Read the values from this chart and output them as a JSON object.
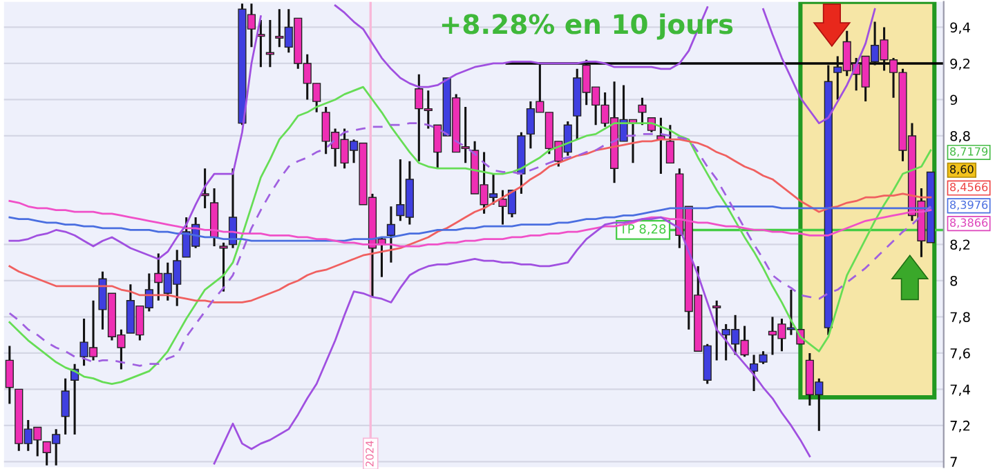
{
  "chart_data": {
    "type": "candlestick",
    "title": "+8.28% en 10 jours",
    "categories": [
      null,
      null,
      null,
      null,
      null,
      null,
      null,
      null,
      null,
      null,
      null,
      null,
      null,
      null,
      null,
      null,
      null,
      null,
      null,
      null,
      null,
      null,
      null,
      null,
      null,
      null,
      null,
      null,
      null,
      null,
      null,
      null,
      null,
      null,
      null,
      null,
      null,
      null,
      null,
      null,
      null,
      null,
      null,
      null,
      null,
      null,
      null,
      null,
      null,
      null,
      null,
      null,
      null,
      null,
      null,
      null,
      null,
      null,
      null,
      null,
      null,
      null,
      null,
      null,
      null,
      null,
      null,
      null,
      null,
      null,
      null,
      null,
      null,
      null,
      null,
      null,
      null,
      null,
      null,
      null,
      null,
      null,
      null,
      null,
      null,
      null,
      null,
      null,
      null,
      null,
      null,
      null,
      null,
      null,
      null,
      null,
      null,
      null,
      null,
      null
    ],
    "ohlc": [
      [
        7.56,
        7.64,
        7.32,
        7.41
      ],
      [
        7.4,
        7.4,
        7.06,
        7.1
      ],
      [
        7.1,
        7.23,
        7.06,
        7.18
      ],
      [
        7.19,
        7.19,
        7.03,
        7.12
      ],
      [
        7.11,
        7.11,
        6.98,
        7.05
      ],
      [
        7.1,
        7.18,
        6.98,
        7.15
      ],
      [
        7.25,
        7.46,
        7.15,
        7.39
      ],
      [
        7.45,
        7.54,
        7.15,
        7.51
      ],
      [
        7.58,
        7.79,
        7.53,
        7.66
      ],
      [
        7.63,
        7.89,
        7.56,
        7.58
      ],
      [
        7.84,
        8.05,
        7.73,
        8.01
      ],
      [
        7.93,
        7.93,
        7.67,
        7.69
      ],
      [
        7.7,
        7.73,
        7.51,
        7.63
      ],
      [
        7.71,
        7.98,
        7.71,
        7.89
      ],
      [
        7.86,
        7.86,
        7.67,
        7.7
      ],
      [
        7.85,
        8.04,
        7.83,
        7.95
      ],
      [
        8.04,
        8.15,
        7.89,
        7.99
      ],
      [
        7.93,
        8.1,
        7.89,
        8.04
      ],
      [
        7.98,
        8.17,
        7.86,
        8.11
      ],
      [
        8.13,
        8.35,
        8.13,
        8.27
      ],
      [
        8.19,
        8.35,
        8.18,
        8.31
      ],
      [
        8.48,
        8.62,
        8.4,
        8.47
      ],
      [
        8.43,
        8.51,
        8.19,
        8.24
      ],
      [
        8.19,
        8.21,
        7.94,
        8.18
      ],
      [
        8.2,
        8.62,
        8.18,
        8.35
      ],
      [
        8.87,
        9.53,
        8.86,
        9.5
      ],
      [
        9.47,
        9.53,
        9.29,
        9.39
      ],
      [
        9.36,
        9.44,
        9.18,
        9.35
      ],
      [
        9.26,
        9.44,
        9.18,
        9.25
      ],
      [
        9.35,
        9.5,
        9.29,
        9.34
      ],
      [
        9.29,
        9.5,
        9.26,
        9.4
      ],
      [
        9.45,
        9.45,
        9.17,
        9.2
      ],
      [
        9.2,
        9.25,
        9.0,
        9.09
      ],
      [
        9.09,
        9.09,
        8.93,
        8.99
      ],
      [
        8.93,
        8.96,
        8.7,
        8.77
      ],
      [
        8.82,
        8.84,
        8.63,
        8.73
      ],
      [
        8.78,
        8.84,
        8.62,
        8.65
      ],
      [
        8.72,
        8.78,
        8.65,
        8.77
      ],
      [
        8.76,
        8.76,
        8.42,
        8.42
      ],
      [
        8.46,
        8.48,
        7.91,
        8.18
      ],
      [
        8.23,
        8.24,
        8.02,
        8.2
      ],
      [
        8.25,
        8.41,
        8.1,
        8.31
      ],
      [
        8.36,
        8.67,
        8.33,
        8.42
      ],
      [
        8.35,
        8.66,
        8.31,
        8.56
      ],
      [
        9.06,
        9.14,
        8.66,
        8.95
      ],
      [
        8.95,
        9.05,
        8.84,
        8.94
      ],
      [
        8.86,
        8.86,
        8.62,
        8.71
      ],
      [
        8.8,
        9.12,
        8.8,
        9.12
      ],
      [
        9.01,
        9.03,
        8.71,
        8.71
      ],
      [
        8.74,
        8.96,
        8.65,
        8.73
      ],
      [
        8.72,
        8.77,
        8.48,
        8.48
      ],
      [
        8.53,
        8.71,
        8.37,
        8.42
      ],
      [
        8.46,
        8.59,
        8.42,
        8.48
      ],
      [
        8.45,
        8.5,
        8.31,
        8.41
      ],
      [
        8.37,
        8.5,
        8.35,
        8.5
      ],
      [
        8.59,
        8.82,
        8.48,
        8.8
      ],
      [
        8.81,
        8.99,
        8.73,
        8.95
      ],
      [
        8.99,
        9.2,
        8.93,
        8.93
      ],
      [
        8.93,
        8.93,
        8.7,
        8.73
      ],
      [
        8.77,
        8.77,
        8.63,
        8.66
      ],
      [
        8.71,
        8.88,
        8.69,
        8.86
      ],
      [
        8.91,
        9.17,
        8.78,
        9.12
      ],
      [
        9.19,
        9.22,
        8.97,
        9.04
      ],
      [
        9.07,
        9.07,
        8.86,
        8.97
      ],
      [
        8.97,
        9.04,
        8.85,
        8.87
      ],
      [
        8.9,
        9.1,
        8.54,
        8.62
      ],
      [
        8.77,
        9.08,
        8.77,
        8.89
      ],
      [
        8.89,
        8.89,
        8.65,
        8.87
      ],
      [
        8.97,
        9.01,
        8.86,
        8.93
      ],
      [
        8.9,
        8.9,
        8.82,
        8.83
      ],
      [
        8.8,
        8.9,
        8.59,
        8.78
      ],
      [
        8.77,
        8.86,
        8.65,
        8.65
      ],
      [
        8.59,
        8.62,
        8.18,
        8.25
      ],
      [
        8.41,
        8.41,
        7.73,
        7.83
      ],
      [
        7.92,
        8.08,
        7.61,
        7.61
      ],
      [
        7.45,
        7.65,
        7.43,
        7.64
      ],
      [
        7.86,
        7.89,
        7.56,
        7.85
      ],
      [
        7.7,
        7.76,
        7.56,
        7.73
      ],
      [
        7.65,
        7.81,
        7.59,
        7.73
      ],
      [
        7.67,
        7.75,
        7.58,
        7.59
      ],
      [
        7.5,
        7.59,
        7.39,
        7.54
      ],
      [
        7.55,
        7.61,
        7.54,
        7.59
      ],
      [
        7.72,
        7.8,
        7.59,
        7.7
      ],
      [
        7.76,
        7.79,
        7.61,
        7.68
      ],
      [
        7.73,
        7.95,
        7.7,
        7.74
      ],
      [
        7.73,
        7.73,
        7.65,
        7.65
      ],
      [
        7.56,
        7.6,
        7.31,
        7.37
      ],
      [
        7.37,
        7.46,
        7.17,
        7.44
      ],
      [
        7.74,
        9.19,
        7.7,
        9.1
      ],
      [
        9.15,
        9.24,
        9.0,
        9.18
      ],
      [
        9.32,
        9.38,
        9.13,
        9.16
      ],
      [
        9.2,
        9.23,
        9.05,
        9.14
      ],
      [
        9.24,
        9.24,
        8.99,
        9.07
      ],
      [
        9.21,
        9.43,
        9.19,
        9.3
      ],
      [
        9.33,
        9.4,
        9.16,
        9.22
      ],
      [
        9.22,
        9.23,
        9.01,
        9.15
      ],
      [
        9.15,
        9.17,
        8.66,
        8.72
      ],
      [
        8.8,
        8.87,
        8.33,
        8.36
      ],
      [
        8.44,
        8.51,
        8.13,
        8.22
      ],
      [
        8.21,
        8.6,
        8.21,
        8.6
      ]
    ],
    "colors": [
      "#ee2fb4",
      "#ee2fb4",
      "#3f3fe0",
      "#ee2fb4",
      "#ee2fb4",
      "#3f3fe0",
      "#3f3fe0",
      "#3f3fe0",
      "#3f3fe0",
      "#ee2fb4",
      "#3f3fe0",
      "#ee2fb4",
      "#ee2fb4",
      "#3f3fe0",
      "#ee2fb4",
      "#3f3fe0",
      "#ee2fb4",
      "#3f3fe0",
      "#3f3fe0",
      "#3f3fe0",
      "#3f3fe0",
      "#ee2fb4",
      "#ee2fb4",
      "#ee2fb4",
      "#3f3fe0",
      "#3f3fe0",
      "#ee2fb4",
      "#ee2fb4",
      "#ee2fb4",
      "#ee2fb4",
      "#3f3fe0",
      "#ee2fb4",
      "#ee2fb4",
      "#ee2fb4",
      "#ee2fb4",
      "#ee2fb4",
      "#ee2fb4",
      "#3f3fe0",
      "#ee2fb4",
      "#ee2fb4",
      "#ee2fb4",
      "#3f3fe0",
      "#3f3fe0",
      "#3f3fe0",
      "#ee2fb4",
      "#ee2fb4",
      "#ee2fb4",
      "#3f3fe0",
      "#ee2fb4",
      "#ee2fb4",
      "#ee2fb4",
      "#ee2fb4",
      "#3f3fe0",
      "#ee2fb4",
      "#3f3fe0",
      "#3f3fe0",
      "#3f3fe0",
      "#ee2fb4",
      "#ee2fb4",
      "#ee2fb4",
      "#3f3fe0",
      "#3f3fe0",
      "#ee2fb4",
      "#ee2fb4",
      "#ee2fb4",
      "#ee2fb4",
      "#3f3fe0",
      "#ee2fb4",
      "#ee2fb4",
      "#ee2fb4",
      "#ee2fb4",
      "#ee2fb4",
      "#ee2fb4",
      "#ee2fb4",
      "#ee2fb4",
      "#3f3fe0",
      "#ee2fb4",
      "#3f3fe0",
      "#3f3fe0",
      "#ee2fb4",
      "#3f3fe0",
      "#3f3fe0",
      "#ee2fb4",
      "#ee2fb4",
      "#3f3fe0",
      "#ee2fb4",
      "#ee2fb4",
      "#3f3fe0",
      "#3f3fe0",
      "#3f3fe0",
      "#ee2fb4",
      "#ee2fb4",
      "#ee2fb4",
      "#3f3fe0",
      "#ee2fb4",
      "#ee2fb4",
      "#ee2fb4",
      "#ee2fb4",
      "#ee2fb4",
      "#3f3fe0"
    ],
    "series": [
      {
        "type": "line",
        "color": "#66dd55",
        "values": [
          7.77,
          7.72,
          7.67,
          7.63,
          7.59,
          7.55,
          7.52,
          7.5,
          7.47,
          7.46,
          7.44,
          7.43,
          7.44,
          7.46,
          7.48,
          7.5,
          7.55,
          7.61,
          7.7,
          7.79,
          7.87,
          7.95,
          7.99,
          8.03,
          8.1,
          8.25,
          8.41,
          8.57,
          8.67,
          8.78,
          8.84,
          8.91,
          8.93,
          8.96,
          8.98,
          9.0,
          9.03,
          9.05,
          9.07,
          9.0,
          8.93,
          8.85,
          8.78,
          8.71,
          8.65,
          8.63,
          8.62,
          8.62,
          8.62,
          8.62,
          8.61,
          8.6,
          8.59,
          8.59,
          8.6,
          8.62,
          8.65,
          8.68,
          8.72,
          8.74,
          8.76,
          8.78,
          8.8,
          8.81,
          8.84,
          8.87,
          8.87,
          8.87,
          8.87,
          8.87,
          8.85,
          8.83,
          8.8,
          8.78,
          8.68,
          8.59,
          8.5,
          8.42,
          8.33,
          8.24,
          8.16,
          8.07,
          7.97,
          7.88,
          7.78,
          7.69,
          7.65,
          7.61,
          7.69,
          7.86,
          8.03,
          8.13,
          8.23,
          8.33,
          8.42,
          8.5,
          8.59,
          8.61,
          8.63,
          8.72
        ]
      },
      {
        "type": "line",
        "color": "#f06060",
        "values": [
          8.08,
          8.05,
          8.03,
          8.01,
          7.99,
          7.97,
          7.97,
          7.97,
          7.97,
          7.97,
          7.97,
          7.97,
          7.95,
          7.94,
          7.92,
          7.92,
          7.92,
          7.92,
          7.91,
          7.9,
          7.89,
          7.89,
          7.88,
          7.88,
          7.88,
          7.88,
          7.89,
          7.91,
          7.93,
          7.95,
          7.98,
          8.0,
          8.03,
          8.05,
          8.06,
          8.08,
          8.1,
          8.12,
          8.14,
          8.15,
          8.16,
          8.17,
          8.18,
          8.2,
          8.22,
          8.24,
          8.27,
          8.29,
          8.32,
          8.35,
          8.38,
          8.4,
          8.43,
          8.46,
          8.49,
          8.52,
          8.56,
          8.59,
          8.63,
          8.65,
          8.67,
          8.69,
          8.7,
          8.72,
          8.73,
          8.74,
          8.75,
          8.76,
          8.77,
          8.77,
          8.78,
          8.78,
          8.78,
          8.77,
          8.76,
          8.74,
          8.71,
          8.69,
          8.66,
          8.63,
          8.61,
          8.58,
          8.56,
          8.52,
          8.48,
          8.44,
          8.41,
          8.38,
          8.4,
          8.41,
          8.43,
          8.44,
          8.46,
          8.46,
          8.47,
          8.47,
          8.48,
          8.47,
          8.46,
          8.46
        ]
      },
      {
        "type": "line",
        "color": "#4a6ee0",
        "values": [
          8.35,
          8.34,
          8.34,
          8.33,
          8.32,
          8.32,
          8.31,
          8.31,
          8.3,
          8.3,
          8.29,
          8.29,
          8.29,
          8.28,
          8.28,
          8.28,
          8.27,
          8.27,
          8.26,
          8.26,
          8.25,
          8.24,
          8.24,
          8.23,
          8.23,
          8.23,
          8.22,
          8.22,
          8.22,
          8.22,
          8.22,
          8.22,
          8.22,
          8.22,
          8.22,
          8.22,
          8.22,
          8.23,
          8.23,
          8.23,
          8.24,
          8.24,
          8.25,
          8.26,
          8.26,
          8.27,
          8.28,
          8.28,
          8.28,
          8.29,
          8.29,
          8.3,
          8.3,
          8.3,
          8.3,
          8.31,
          8.31,
          8.31,
          8.31,
          8.32,
          8.32,
          8.33,
          8.34,
          8.34,
          8.35,
          8.35,
          8.36,
          8.36,
          8.37,
          8.38,
          8.39,
          8.4,
          8.4,
          8.4,
          8.4,
          8.4,
          8.41,
          8.41,
          8.41,
          8.41,
          8.41,
          8.41,
          8.41,
          8.4,
          8.4,
          8.4,
          8.4,
          8.4,
          8.4,
          8.4,
          8.4,
          8.4,
          8.4,
          8.4,
          8.4,
          8.4,
          8.4,
          8.4,
          8.4,
          8.4
        ]
      },
      {
        "type": "line",
        "color": "#f050c8",
        "values": [
          8.44,
          8.43,
          8.41,
          8.4,
          8.4,
          8.39,
          8.39,
          8.38,
          8.38,
          8.38,
          8.37,
          8.37,
          8.36,
          8.35,
          8.34,
          8.33,
          8.32,
          8.31,
          8.3,
          8.29,
          8.29,
          8.28,
          8.28,
          8.27,
          8.27,
          8.26,
          8.26,
          8.26,
          8.25,
          8.25,
          8.25,
          8.24,
          8.24,
          8.23,
          8.23,
          8.22,
          8.21,
          8.21,
          8.2,
          8.2,
          8.2,
          8.2,
          8.19,
          8.19,
          8.19,
          8.2,
          8.2,
          8.21,
          8.21,
          8.22,
          8.22,
          8.23,
          8.23,
          8.23,
          8.24,
          8.24,
          8.25,
          8.25,
          8.26,
          8.26,
          8.27,
          8.27,
          8.28,
          8.29,
          8.3,
          8.3,
          8.31,
          8.32,
          8.34,
          8.35,
          8.35,
          8.34,
          8.34,
          8.33,
          8.32,
          8.32,
          8.31,
          8.3,
          8.3,
          8.29,
          8.28,
          8.28,
          8.27,
          8.27,
          8.26,
          8.26,
          8.25,
          8.25,
          8.25,
          8.27,
          8.29,
          8.31,
          8.33,
          8.34,
          8.35,
          8.36,
          8.37,
          8.38,
          8.38,
          8.39
        ]
      },
      {
        "type": "line",
        "color": "#a060e0",
        "line_style": "dashed",
        "values": [
          7.82,
          7.78,
          7.73,
          7.7,
          7.66,
          7.63,
          7.61,
          7.58,
          7.57,
          7.55,
          7.56,
          7.56,
          7.55,
          7.54,
          7.53,
          7.54,
          7.54,
          7.57,
          7.59,
          7.69,
          7.76,
          7.83,
          7.9,
          7.96,
          8.03,
          8.16,
          8.29,
          8.39,
          8.48,
          8.56,
          8.63,
          8.66,
          8.68,
          8.71,
          8.73,
          8.78,
          8.82,
          8.83,
          8.84,
          8.85,
          8.85,
          8.86,
          8.86,
          8.87,
          8.87,
          8.86,
          8.84,
          8.81,
          8.77,
          8.74,
          8.7,
          8.65,
          8.61,
          8.6,
          8.6,
          8.59,
          8.61,
          8.63,
          8.65,
          8.67,
          8.68,
          8.69,
          8.71,
          8.72,
          8.75,
          8.77,
          8.8,
          8.8,
          8.81,
          8.81,
          8.81,
          8.8,
          8.79,
          8.78,
          8.71,
          8.63,
          8.56,
          8.47,
          8.38,
          8.29,
          8.2,
          8.12,
          8.03,
          7.99,
          7.96,
          7.92,
          7.91,
          7.9,
          7.93,
          7.95,
          7.99,
          8.03,
          8.07,
          8.12,
          8.17,
          8.22,
          8.27,
          8.31,
          8.36,
          8.41
        ]
      },
      {
        "type": "line",
        "color": "#a050e0",
        "values": [
          8.22,
          8.22,
          8.23,
          8.25,
          8.26,
          8.28,
          8.27,
          8.25,
          8.22,
          8.19,
          8.22,
          8.24,
          8.21,
          8.18,
          8.16,
          8.14,
          8.12,
          8.16,
          8.24,
          8.31,
          8.42,
          8.52,
          8.59,
          8.59,
          8.59,
          8.82,
          9.2,
          9.46,
          null,
          null,
          null,
          null,
          null,
          null,
          null,
          9.52,
          9.48,
          9.43,
          9.39,
          9.31,
          9.23,
          9.17,
          9.12,
          9.09,
          9.07,
          9.07,
          9.08,
          9.11,
          9.14,
          9.16,
          9.18,
          9.19,
          9.2,
          9.2,
          9.21,
          9.21,
          9.21,
          9.2,
          9.2,
          9.2,
          9.2,
          9.2,
          9.21,
          9.21,
          9.2,
          9.18,
          9.18,
          9.18,
          9.18,
          9.18,
          9.17,
          9.17,
          9.2,
          9.27,
          9.39,
          9.51,
          null,
          null,
          null,
          null,
          null,
          9.5,
          9.36,
          9.23,
          9.12,
          9.01,
          8.94,
          8.87,
          8.9,
          8.99,
          9.08,
          9.19,
          9.31,
          9.5,
          null,
          null,
          null,
          null,
          null,
          null
        ]
      },
      {
        "type": "line",
        "color": "#a050e0",
        "values": [
          null,
          null,
          null,
          null,
          null,
          null,
          null,
          null,
          null,
          null,
          null,
          null,
          null,
          null,
          null,
          null,
          null,
          null,
          null,
          null,
          null,
          null,
          6.99,
          7.1,
          7.21,
          7.1,
          7.07,
          7.1,
          7.12,
          7.15,
          7.18,
          7.26,
          7.35,
          7.43,
          7.55,
          7.67,
          7.81,
          7.94,
          7.93,
          7.91,
          7.9,
          7.88,
          7.96,
          8.03,
          8.06,
          8.08,
          8.09,
          8.09,
          8.1,
          8.11,
          8.12,
          8.11,
          8.11,
          8.1,
          8.1,
          8.09,
          8.09,
          8.08,
          8.08,
          8.09,
          8.1,
          8.17,
          8.23,
          8.27,
          8.31,
          8.32,
          8.32,
          8.33,
          8.34,
          8.34,
          8.35,
          8.32,
          8.29,
          8.16,
          8.03,
          7.88,
          7.73,
          7.67,
          7.6,
          7.54,
          7.48,
          7.41,
          7.35,
          7.27,
          7.2,
          7.12,
          7.03,
          null,
          null,
          null,
          null,
          null,
          null,
          null,
          null,
          null,
          null,
          null,
          null,
          null
        ]
      }
    ],
    "annotations": [
      "8,7179",
      "8,60",
      "8,4566",
      "8,3976",
      "8,3866",
      "2024"
    ],
    "ref_lines": [
      {
        "axis": "y",
        "value": 9.2,
        "color": "#000000"
      },
      {
        "axis": "y",
        "value": 8.28,
        "label": "TP 8,28",
        "color": "#44cc44"
      }
    ],
    "ylim": [
      6.97,
      9.54
    ],
    "yticks": [
      {
        "value": 7,
        "label": "7"
      },
      {
        "value": 7.2,
        "label": "7,2"
      },
      {
        "value": 7.4,
        "label": "7,4"
      },
      {
        "value": 7.6,
        "label": "7,6"
      },
      {
        "value": 7.8,
        "label": "7,8"
      },
      {
        "value": 8,
        "label": "8"
      },
      {
        "value": 8.2,
        "label": "8,2"
      },
      {
        "value": 8.8,
        "label": "8,8"
      },
      {
        "value": 9,
        "label": "9"
      },
      {
        "value": 9.2,
        "label": "9,2"
      },
      {
        "value": 9.4,
        "label": "9,4"
      }
    ],
    "tick_labels": "y",
    "grid": "y"
  }
}
